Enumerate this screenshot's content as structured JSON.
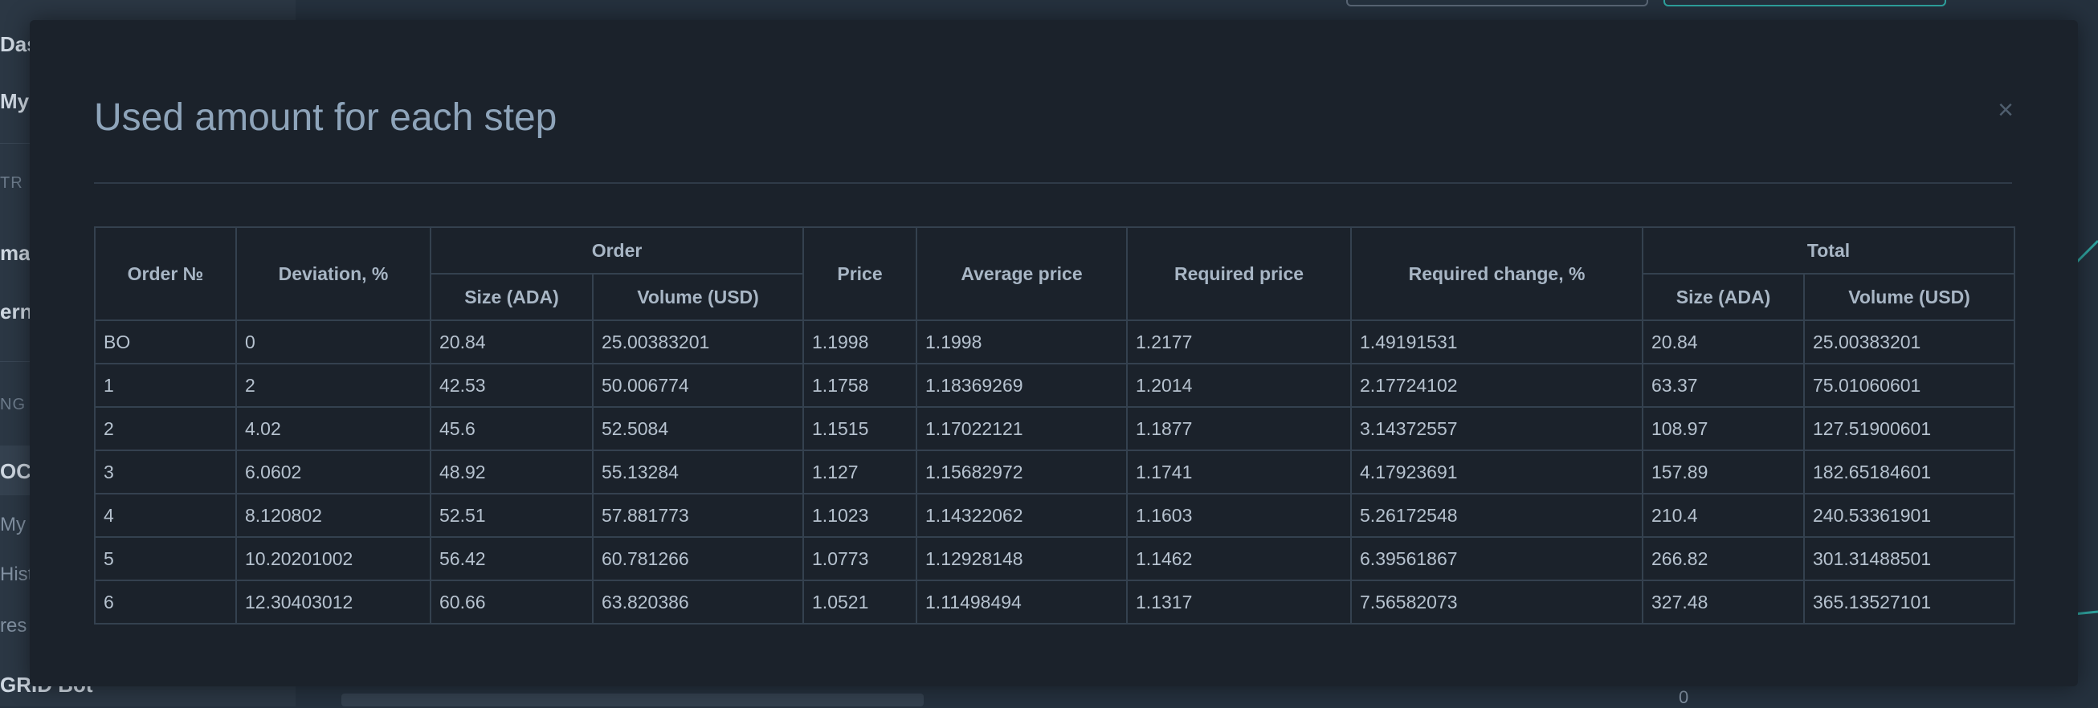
{
  "sidebar": {
    "items": [
      "Das",
      "My",
      "TR",
      "ma",
      "ern",
      "NG",
      "OCA",
      "My I",
      "Hist",
      "res",
      "GRID Bot"
    ]
  },
  "background": {
    "axis_zero": "0"
  },
  "modal": {
    "title": "Used amount for each step",
    "close_label": "×",
    "table": {
      "headers": {
        "order_no": "Order №",
        "deviation": "Deviation, %",
        "order_group": "Order",
        "order_size": "Size (ADA)",
        "order_volume": "Volume (USD)",
        "price": "Price",
        "average_price": "Average price",
        "required_price": "Required price",
        "required_change": "Required change, %",
        "total_group": "Total",
        "total_size": "Size (ADA)",
        "total_volume": "Volume (USD)"
      },
      "rows": [
        [
          "BO",
          "0",
          "20.84",
          "25.00383201",
          "1.1998",
          "1.1998",
          "1.2177",
          "1.49191531",
          "20.84",
          "25.00383201"
        ],
        [
          "1",
          "2",
          "42.53",
          "50.006774",
          "1.1758",
          "1.18369269",
          "1.2014",
          "2.17724102",
          "63.37",
          "75.01060601"
        ],
        [
          "2",
          "4.02",
          "45.6",
          "52.5084",
          "1.1515",
          "1.17022121",
          "1.1877",
          "3.14372557",
          "108.97",
          "127.51900601"
        ],
        [
          "3",
          "6.0602",
          "48.92",
          "55.13284",
          "1.127",
          "1.15682972",
          "1.1741",
          "4.17923691",
          "157.89",
          "182.65184601"
        ],
        [
          "4",
          "8.120802",
          "52.51",
          "57.881773",
          "1.1023",
          "1.14322062",
          "1.1603",
          "5.26172548",
          "210.4",
          "240.53361901"
        ],
        [
          "5",
          "10.20201002",
          "56.42",
          "60.781266",
          "1.0773",
          "1.12928148",
          "1.1462",
          "6.39561867",
          "266.82",
          "301.31488501"
        ],
        [
          "6",
          "12.30403012",
          "60.66",
          "63.820386",
          "1.0521",
          "1.11498494",
          "1.1317",
          "7.56582073",
          "327.48",
          "365.13527101"
        ]
      ]
    }
  }
}
